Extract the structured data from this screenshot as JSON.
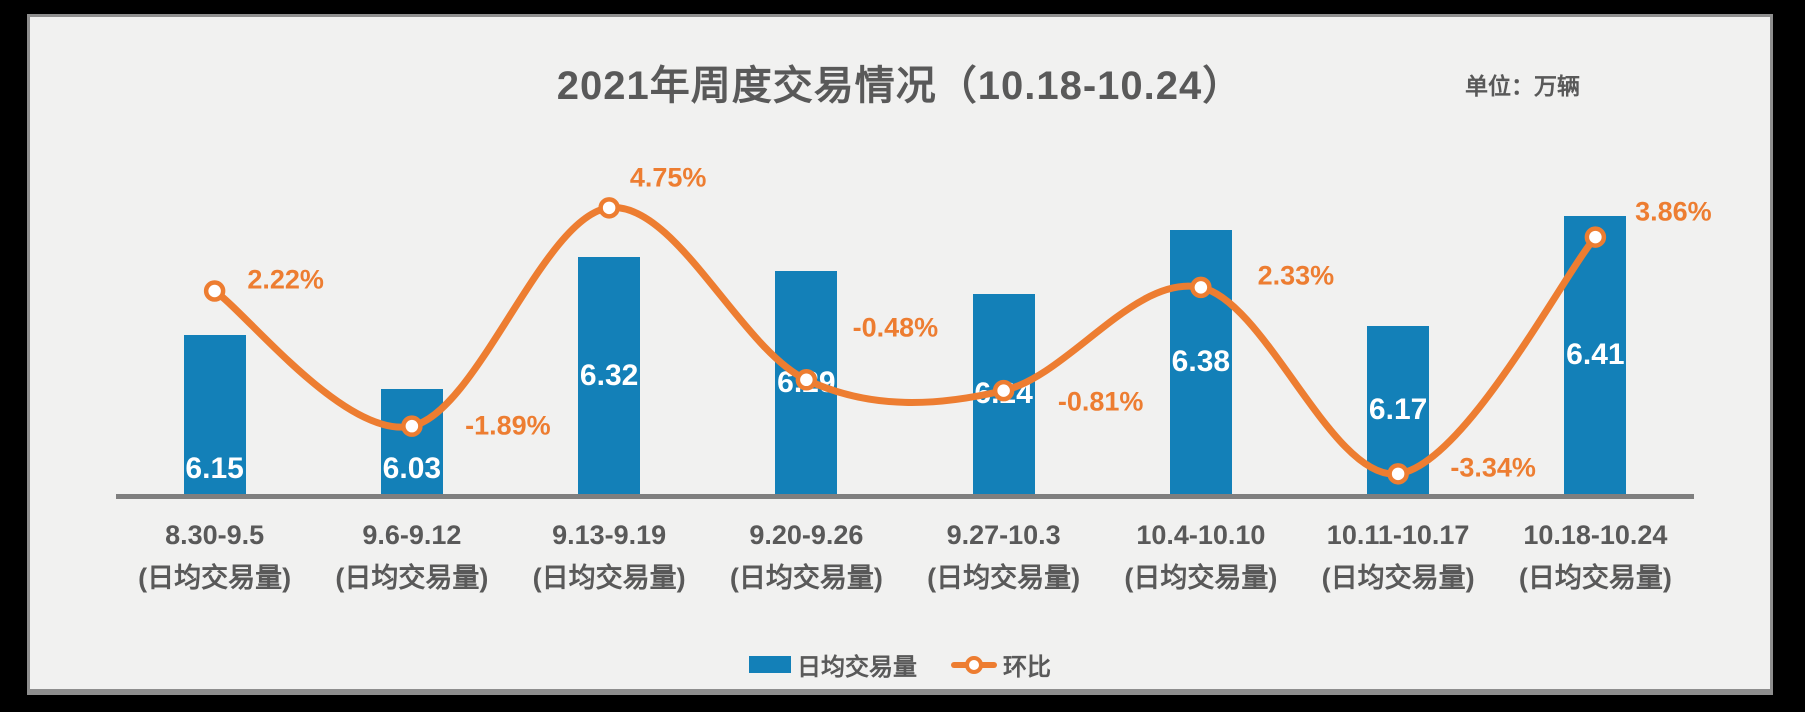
{
  "header": {
    "title": "2021年周度交易情况（10.18-10.24）",
    "unit_label": "单位：万辆"
  },
  "legend": {
    "items": [
      {
        "label": "日均交易量",
        "type": "bar"
      },
      {
        "label": "环比",
        "type": "line"
      }
    ]
  },
  "colors": {
    "bar_blue": "#1380b8",
    "line_orange": "#ed7d31",
    "axis_gray": "#7f7f7f",
    "text_gray": "#595959",
    "bar_value_text": "#ffffff",
    "panel_bg": "#f1f1f0",
    "frame_black": "#000000"
  },
  "chart_data": {
    "type": "bar",
    "title": "2021年周度交易情况（10.18-10.24）",
    "unit": "万辆",
    "categories": [
      "8.30-9.5",
      "9.6-9.12",
      "9.13-9.19",
      "9.20-9.26",
      "9.27-10.3",
      "10.4-10.10",
      "10.11-10.17",
      "10.18-10.24"
    ],
    "category_sublabel": "(日均交易量)",
    "xlabel": "",
    "ylabel": "",
    "axes_hidden": true,
    "grid": false,
    "legend_position": "bottom-center",
    "bar_axis_baseline": 5.8,
    "ylim": [
      5.8,
      7.27
    ],
    "pct_axis_range": [
      -7.0,
      13.5
    ],
    "series": [
      {
        "name": "日均交易量",
        "type": "bar",
        "color": "#1380b8",
        "values": [
          6.15,
          6.03,
          6.32,
          6.29,
          6.24,
          6.38,
          6.17,
          6.41
        ],
        "value_labels": [
          "6.15",
          "6.03",
          "6.32",
          "6.29",
          "6.24",
          "6.38",
          "6.17",
          "6.41"
        ]
      },
      {
        "name": "环比",
        "type": "line",
        "color": "#ed7d31",
        "values": [
          2.22,
          -1.89,
          4.75,
          -0.48,
          -0.81,
          2.33,
          -3.34,
          3.86
        ],
        "point_labels": [
          "2.22%",
          "-1.89%",
          "4.75%",
          "-0.48%",
          "-0.81%",
          "2.33%",
          "-3.34%",
          "3.86%"
        ],
        "label_offsets": [
          [
            71,
            -11
          ],
          [
            96,
            0
          ],
          [
            59,
            -30
          ],
          [
            89,
            -52
          ],
          [
            97,
            11
          ],
          [
            95,
            -11
          ],
          [
            95,
            -6
          ],
          [
            78,
            -25
          ]
        ]
      }
    ]
  }
}
